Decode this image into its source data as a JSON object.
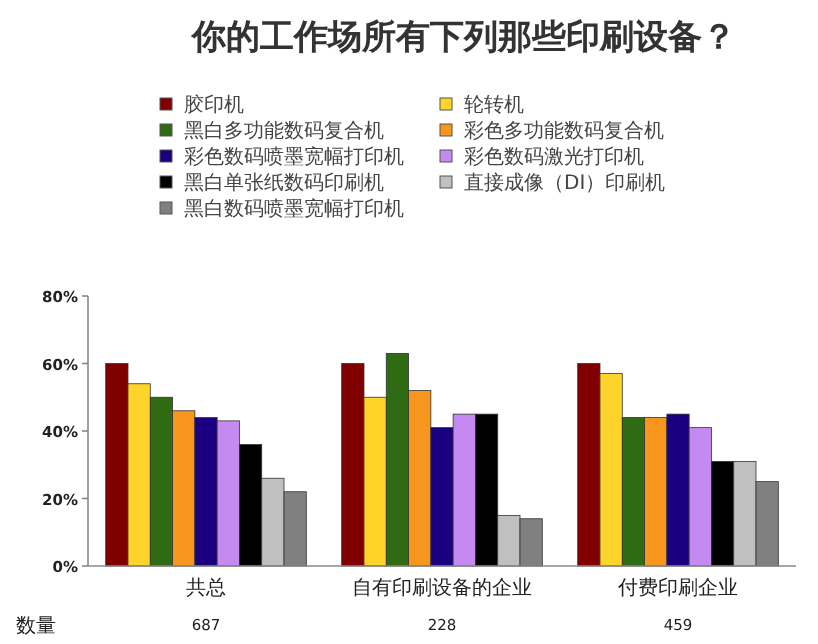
{
  "chart_data": {
    "type": "bar",
    "title": "你的工作场所有下列那些印刷设备？",
    "categories": [
      "共总",
      "自有印刷设备的企业",
      "付费印刷企业"
    ],
    "series": [
      {
        "name": "胶印机",
        "color": "#800000",
        "values": [
          60,
          60,
          60
        ]
      },
      {
        "name": "轮转机",
        "color": "#ffd42a",
        "values": [
          54,
          50,
          57
        ]
      },
      {
        "name": "黑白多功能数码复合机",
        "color": "#2e6b12",
        "values": [
          50,
          63,
          44
        ]
      },
      {
        "name": "彩色多功能数码复合机",
        "color": "#f7961e",
        "values": [
          46,
          52,
          44
        ]
      },
      {
        "name": "彩色数码喷墨宽幅打印机",
        "color": "#1a0080",
        "values": [
          44,
          41,
          45
        ]
      },
      {
        "name": "彩色数码激光打印机",
        "color": "#c58af0",
        "values": [
          43,
          45,
          41
        ]
      },
      {
        "name": "黑白单张纸数码印刷机",
        "color": "#000000",
        "values": [
          36,
          45,
          31
        ]
      },
      {
        "name": "直接成像（DI）印刷机",
        "color": "#c0c0c0",
        "values": [
          26,
          15,
          31
        ]
      },
      {
        "name": "黑白数码喷墨宽幅打印机",
        "color": "#808080",
        "values": [
          22,
          14,
          25
        ]
      }
    ],
    "ylim": [
      0,
      80
    ],
    "yticks": [
      {
        "value": 0,
        "label": "0%"
      },
      {
        "value": 20,
        "label": "20%"
      },
      {
        "value": 40,
        "label": "40%"
      },
      {
        "value": 60,
        "label": "60%"
      },
      {
        "value": 80,
        "label": "80%"
      }
    ],
    "legend": "top",
    "annotations": [
      "数量",
      "687",
      "228",
      "459"
    ]
  }
}
